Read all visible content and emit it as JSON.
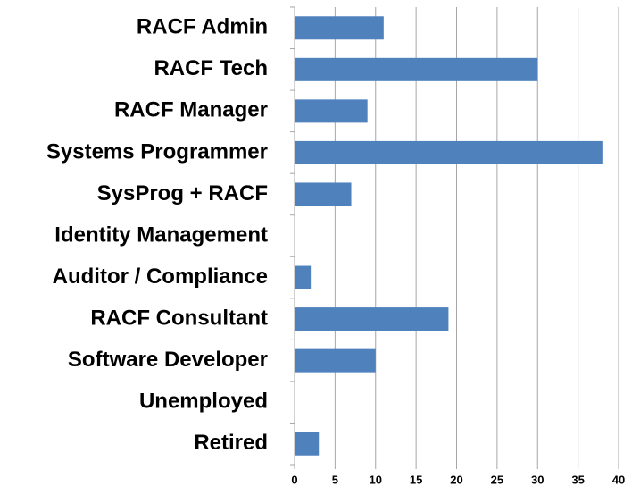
{
  "chart_data": {
    "type": "barh",
    "categories": [
      "RACF Admin",
      "RACF Tech",
      "RACF Manager",
      "Systems Programmer",
      "SysProg + RACF",
      "Identity Management",
      "Auditor / Compliance",
      "RACF Consultant",
      "Software Developer",
      "Unemployed",
      "Retired"
    ],
    "values": [
      11,
      30,
      9,
      38,
      7,
      0,
      2,
      19,
      10,
      0,
      3
    ],
    "color": "#4f81bd",
    "xlim": [
      0,
      40
    ],
    "xticks": [
      0,
      5,
      10,
      15,
      20,
      25,
      30,
      35,
      40
    ],
    "grid": true
  }
}
